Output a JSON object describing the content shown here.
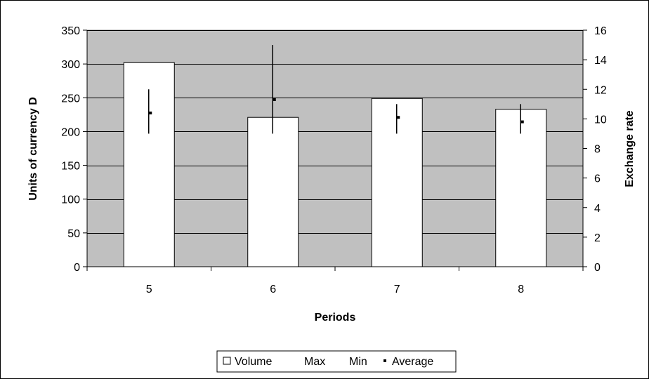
{
  "chart_data": {
    "type": "bar",
    "categories": [
      "5",
      "6",
      "7",
      "8"
    ],
    "xlabel": "Periods",
    "ylabel": "Units of currency D",
    "y2label": "Exchange rate",
    "ylim": [
      0,
      350
    ],
    "y2lim": [
      0,
      16
    ],
    "y_ticks": [
      "0",
      "50",
      "100",
      "150",
      "200",
      "250",
      "300",
      "350"
    ],
    "y2_ticks": [
      "0",
      "2",
      "4",
      "6",
      "8",
      "10",
      "12",
      "14",
      "16"
    ],
    "grid": true,
    "legend_position": "bottom",
    "series": [
      {
        "name": "Volume",
        "type": "bar",
        "axis": "left",
        "values": [
          302,
          221,
          249,
          233
        ]
      },
      {
        "name": "Max",
        "axis": "right",
        "values": [
          12.0,
          15.0,
          11.0,
          11.0
        ]
      },
      {
        "name": "Min",
        "axis": "right",
        "values": [
          9.0,
          9.0,
          9.0,
          9.0
        ]
      },
      {
        "name": "Average",
        "axis": "right",
        "values": [
          10.4,
          11.3,
          10.1,
          9.8
        ]
      }
    ],
    "colors": {
      "plot_background": "#c0c0c0",
      "bar_fill": "#ffffff",
      "bar_stroke": "#000000",
      "gridline": "#000000",
      "range_line": "#000000"
    }
  }
}
